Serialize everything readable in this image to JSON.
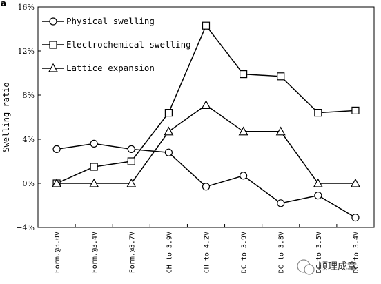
{
  "panel_label": "a",
  "watermark": "顺理成章",
  "chart_data": {
    "type": "line",
    "title": "",
    "xlabel": "",
    "ylabel": "Swelling ratio",
    "ylim": [
      -4,
      16
    ],
    "yticks": [
      -4,
      0,
      4,
      8,
      12,
      16
    ],
    "ytick_labels": [
      "−4%",
      "0%",
      "4%",
      "8%",
      "12%",
      "16%"
    ],
    "categories": [
      "Form.@3.0V",
      "Form.@3.4V",
      "Form.@3.7V",
      "CH to 3.9V",
      "CH to 4.2V",
      "DC to 3.9V",
      "DC to 3.8V",
      "DC to 3.5V",
      "DC to 3.4V"
    ],
    "legend_position": "top-left",
    "series": [
      {
        "name": "Physical swelling",
        "marker": "circle",
        "values": [
          3.1,
          3.6,
          3.1,
          2.8,
          -0.3,
          0.7,
          -1.8,
          -1.1,
          -3.1
        ]
      },
      {
        "name": "Electrochemical swelling",
        "marker": "square",
        "values": [
          0.0,
          1.5,
          2.0,
          6.4,
          14.3,
          9.9,
          9.7,
          6.4,
          6.6
        ]
      },
      {
        "name": "Lattice expansion",
        "marker": "triangle",
        "values": [
          0.0,
          0.0,
          0.0,
          4.7,
          7.1,
          4.7,
          4.7,
          0.0,
          0.0
        ]
      }
    ]
  }
}
